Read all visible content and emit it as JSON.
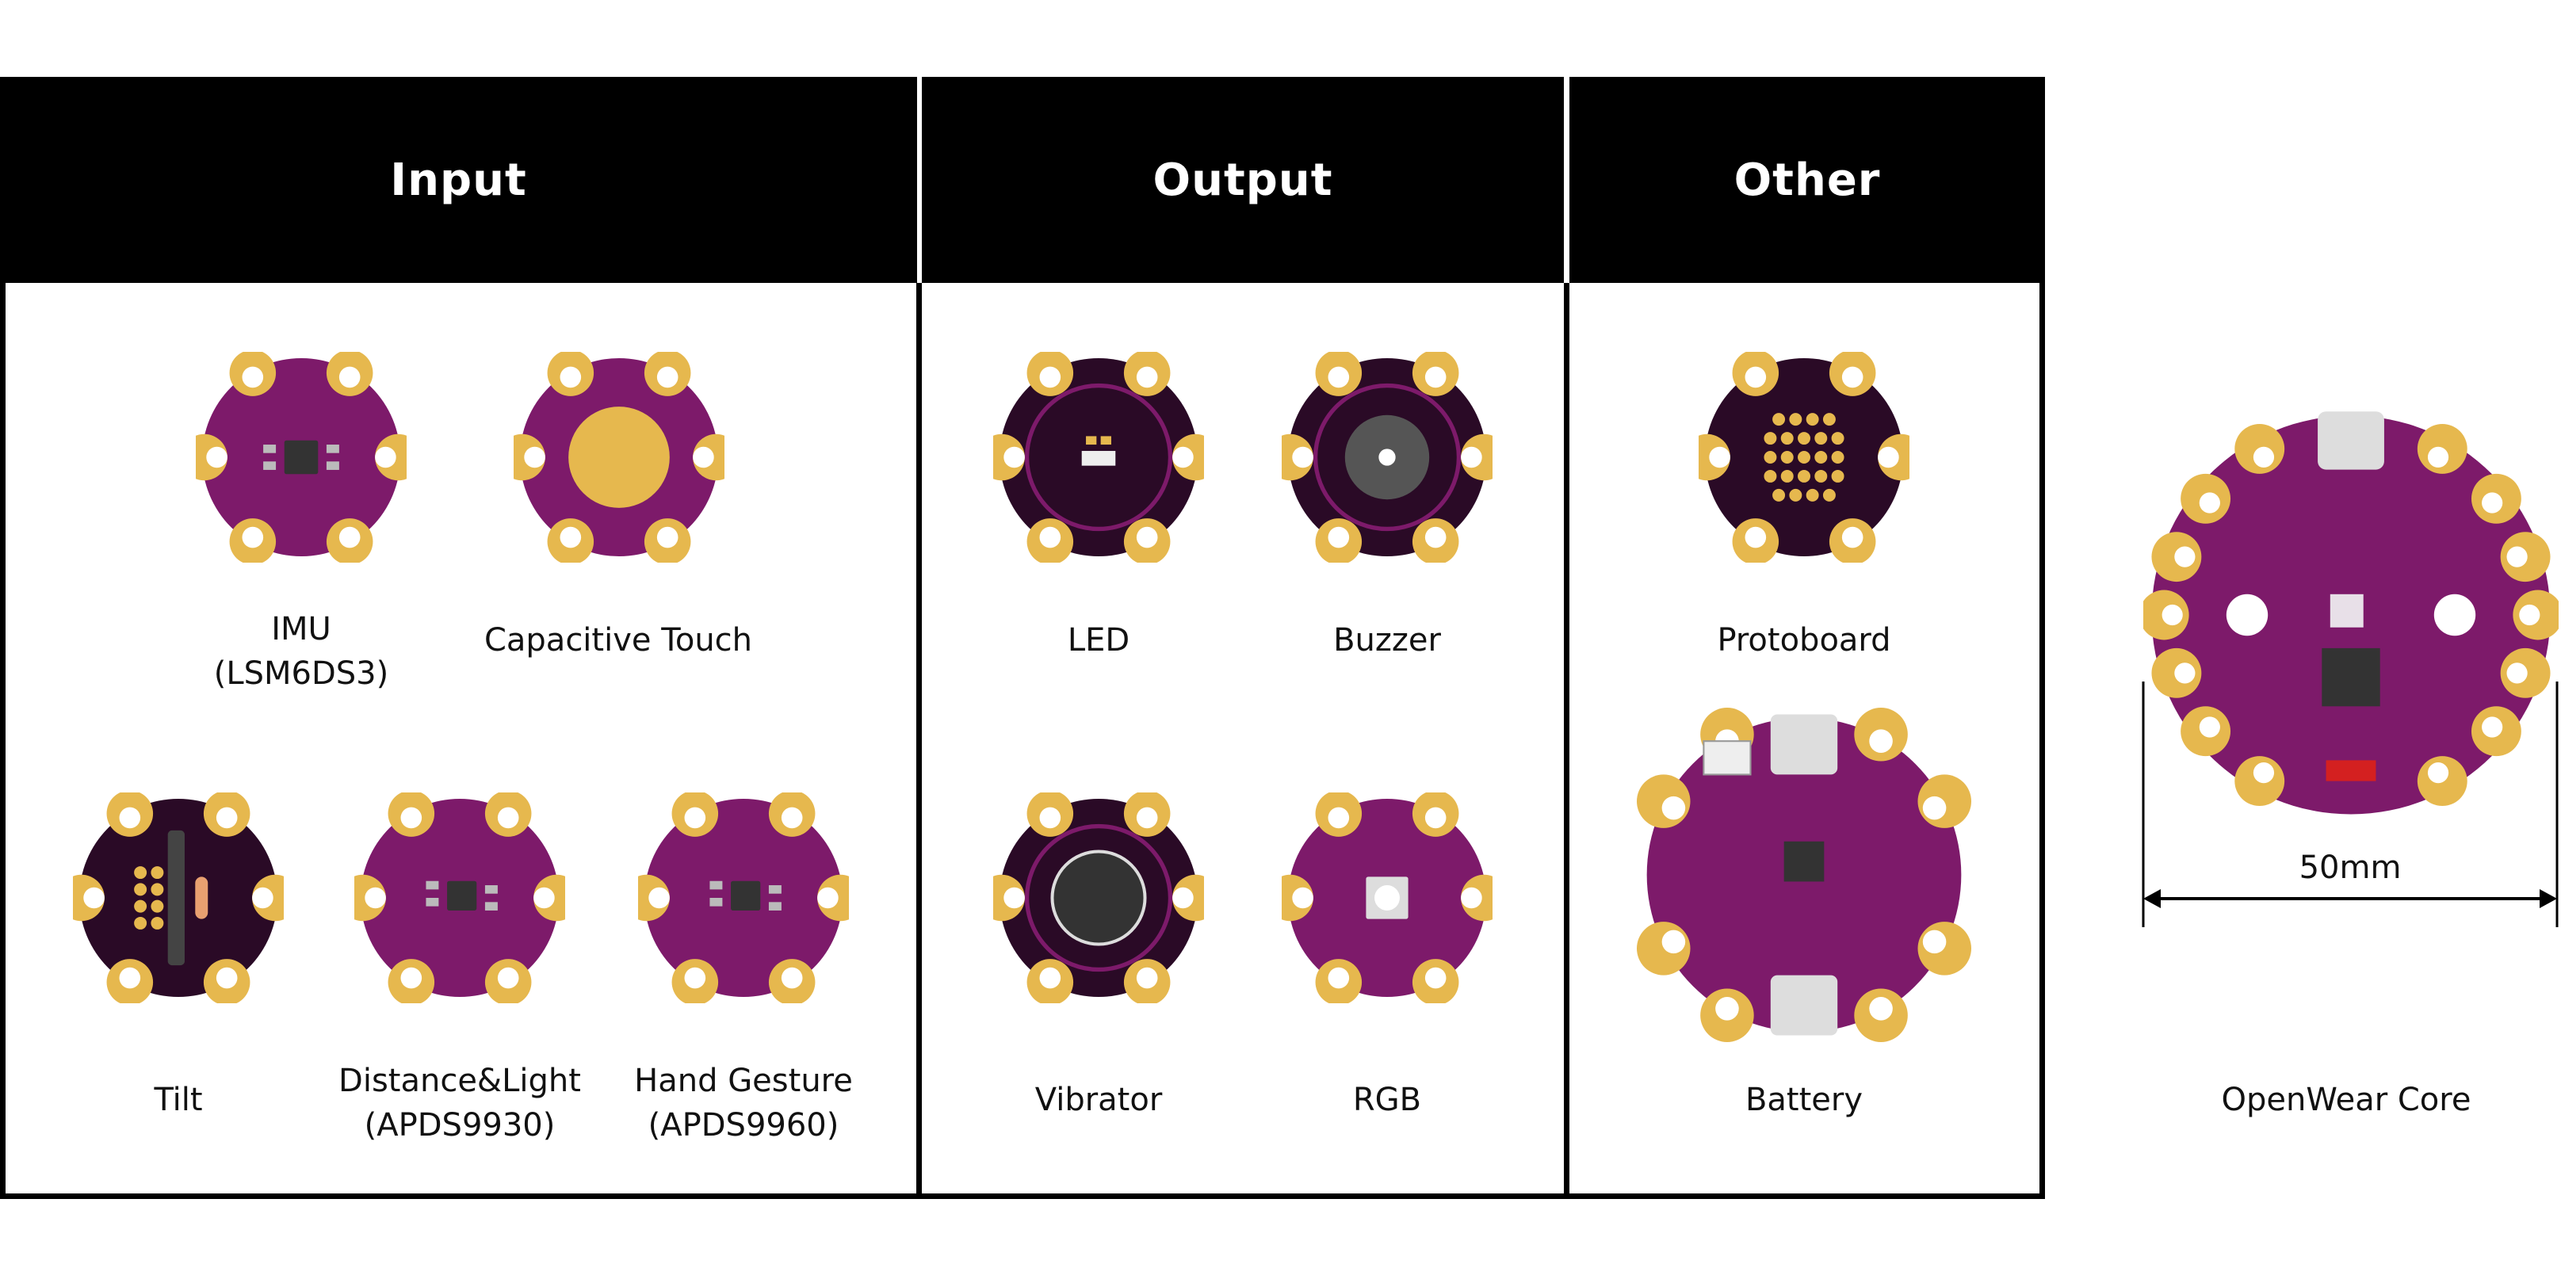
{
  "sections": {
    "input": "Input",
    "output": "Output",
    "other": "Other"
  },
  "modules": {
    "imu": {
      "line1": "IMU",
      "line2": "(LSM6DS3)"
    },
    "cap": {
      "line1": "Capacitive Touch"
    },
    "tilt": {
      "line1": "Tilt"
    },
    "dist": {
      "line1": "Distance&Light",
      "line2": "(APDS9930)"
    },
    "gesture": {
      "line1": "Hand Gesture",
      "line2": "(APDS9960)"
    },
    "led": {
      "line1": "LED"
    },
    "buzzer": {
      "line1": "Buzzer"
    },
    "vibrator": {
      "line1": "Vibrator"
    },
    "rgb": {
      "line1": "RGB"
    },
    "protoboard": {
      "line1": "Protoboard"
    },
    "battery": {
      "line1": "Battery"
    },
    "core": {
      "line1": "OpenWear Core"
    }
  },
  "dimension": "50mm",
  "colors": {
    "pcb_purple": "#7d1a6a",
    "pcb_dark": "#2a0a26",
    "gold": "#e6b84e",
    "header_bg": "#000000"
  }
}
